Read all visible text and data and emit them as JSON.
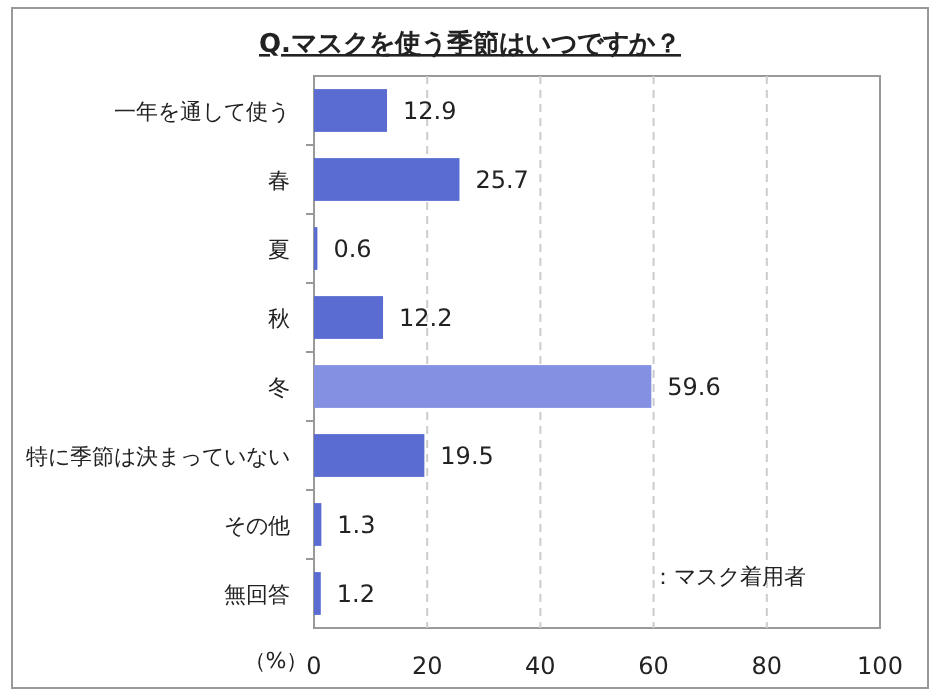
{
  "chart_data": {
    "type": "bar",
    "orientation": "horizontal",
    "title": "Q.マスクを使う季節はいつですか？",
    "xlabel": "（%）",
    "categories": [
      "一年を通して使う",
      "春",
      "夏",
      "秋",
      "冬",
      "特に季節は決まっていない",
      "その他",
      "無回答"
    ],
    "values": [
      12.9,
      25.7,
      0.6,
      12.2,
      59.6,
      19.5,
      1.3,
      1.2
    ],
    "colors": [
      "#5a6bd2",
      "#5a6bd2",
      "#5a6bd2",
      "#5a6bd2",
      "#8490e2",
      "#5a6bd2",
      "#5a6bd2",
      "#5a6bd2"
    ],
    "xlim": [
      0,
      100
    ],
    "xticks": [
      0,
      20,
      40,
      60,
      80,
      100
    ],
    "grid": "x",
    "data_labels": true,
    "annotations": [
      "：マスク着用者"
    ]
  }
}
